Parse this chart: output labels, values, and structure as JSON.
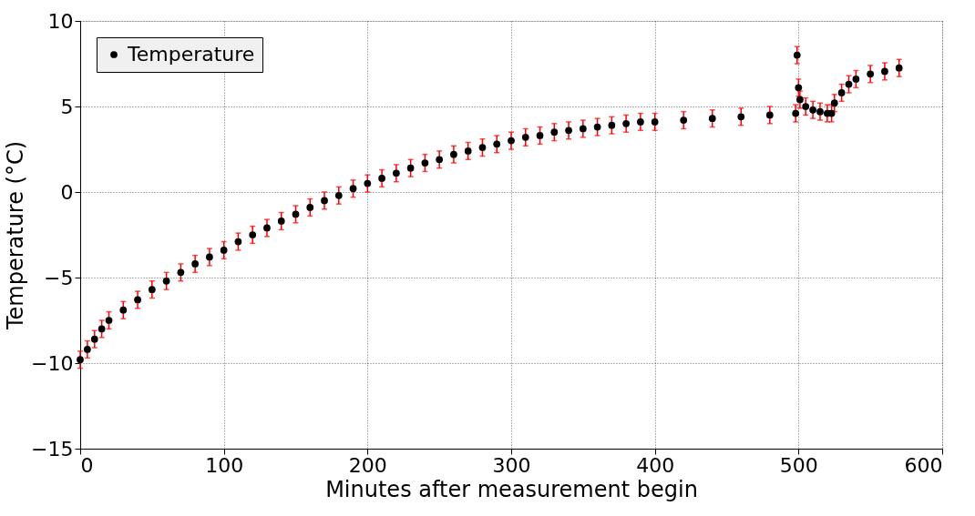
{
  "chart_data": {
    "type": "scatter",
    "xlabel": "Minutes after measurement begin",
    "ylabel": "Temperature (°C)",
    "xlim": [
      0,
      600
    ],
    "xticks": [
      0,
      100,
      200,
      300,
      400,
      500,
      600
    ],
    "ylim": [
      -15,
      10
    ],
    "yticks": [
      -15,
      -10,
      -5,
      0,
      5,
      10
    ],
    "grid": true,
    "legend": "top left",
    "marker": "circle",
    "x": [
      0,
      5,
      10,
      15,
      20,
      30,
      40,
      50,
      60,
      70,
      80,
      90,
      100,
      110,
      120,
      130,
      140,
      150,
      160,
      170,
      180,
      190,
      200,
      210,
      220,
      230,
      240,
      250,
      260,
      270,
      280,
      290,
      300,
      310,
      320,
      330,
      340,
      350,
      360,
      370,
      380,
      390,
      400,
      420,
      440,
      460,
      480,
      498,
      499,
      500,
      501,
      505,
      510,
      515,
      520,
      523,
      525,
      530,
      535,
      540,
      550,
      560,
      570
    ],
    "series": [
      {
        "name": "Temperature",
        "color": "#000000",
        "values": [
          -9.8,
          -9.2,
          -8.6,
          -8.0,
          -7.5,
          -6.9,
          -6.3,
          -5.7,
          -5.2,
          -4.7,
          -4.2,
          -3.8,
          -3.4,
          -2.9,
          -2.5,
          -2.1,
          -1.7,
          -1.3,
          -0.9,
          -0.5,
          -0.2,
          0.2,
          0.5,
          0.8,
          1.1,
          1.4,
          1.7,
          1.9,
          2.2,
          2.4,
          2.6,
          2.8,
          3.0,
          3.2,
          3.3,
          3.5,
          3.6,
          3.7,
          3.8,
          3.9,
          4.0,
          4.1,
          4.1,
          4.2,
          4.3,
          4.4,
          4.5,
          4.6,
          8.0,
          6.1,
          5.4,
          5.0,
          4.8,
          4.7,
          4.6,
          4.6,
          5.2,
          5.8,
          6.3,
          6.6,
          6.9,
          7.05,
          7.25
        ],
        "errors": [
          0.5,
          0.5,
          0.5,
          0.5,
          0.5,
          0.5,
          0.5,
          0.5,
          0.5,
          0.5,
          0.5,
          0.5,
          0.5,
          0.5,
          0.5,
          0.5,
          0.5,
          0.5,
          0.5,
          0.5,
          0.5,
          0.5,
          0.5,
          0.5,
          0.5,
          0.5,
          0.5,
          0.5,
          0.5,
          0.5,
          0.5,
          0.5,
          0.5,
          0.5,
          0.5,
          0.5,
          0.5,
          0.5,
          0.5,
          0.5,
          0.5,
          0.5,
          0.5,
          0.5,
          0.5,
          0.5,
          0.5,
          0.5,
          0.5,
          0.5,
          0.5,
          0.5,
          0.5,
          0.5,
          0.5,
          0.5,
          0.5,
          0.5,
          0.5,
          0.5,
          0.5,
          0.5,
          0.5
        ]
      }
    ]
  }
}
